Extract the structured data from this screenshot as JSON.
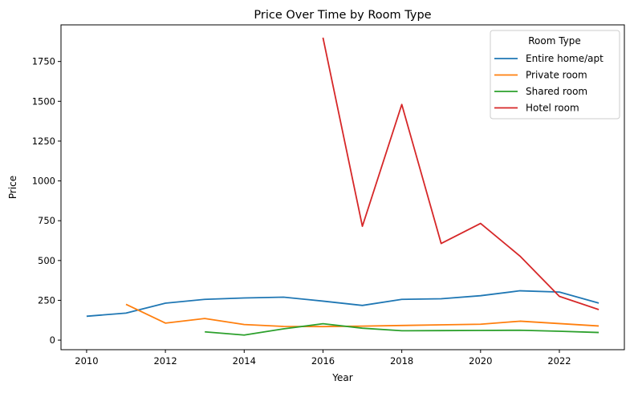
{
  "chart_data": {
    "type": "line",
    "title": "Price Over Time by Room Type",
    "xlabel": "Year",
    "ylabel": "Price",
    "xlim": [
      2009.35,
      2023.65
    ],
    "ylim": [
      -60,
      1980
    ],
    "x_ticks": [
      2010,
      2012,
      2014,
      2016,
      2018,
      2020,
      2022
    ],
    "y_ticks": [
      0,
      250,
      500,
      750,
      1000,
      1250,
      1500,
      1750
    ],
    "grid": false,
    "legend": {
      "title": "Room Type",
      "placement": "top-right"
    },
    "series": [
      {
        "name": "Entire home/apt",
        "color": "#1f77b4",
        "x": [
          2010,
          2011,
          2012,
          2013,
          2014,
          2015,
          2016,
          2017,
          2018,
          2019,
          2020,
          2021,
          2022,
          2023
        ],
        "y": [
          150,
          170,
          232,
          256,
          265,
          270,
          245,
          218,
          256,
          260,
          279,
          310,
          302,
          233
        ]
      },
      {
        "name": "Private room",
        "color": "#ff7f0e",
        "x": [
          2011,
          2012,
          2013,
          2014,
          2015,
          2016,
          2017,
          2018,
          2019,
          2020,
          2021,
          2022,
          2023
        ],
        "y": [
          225,
          107,
          136,
          98,
          86,
          85,
          88,
          92,
          96,
          100,
          119,
          104,
          89
        ]
      },
      {
        "name": "Shared room",
        "color": "#2ca02c",
        "x": [
          2013,
          2014,
          2015,
          2016,
          2017,
          2018,
          2019,
          2020,
          2021,
          2022,
          2023
        ],
        "y": [
          52,
          32,
          71,
          103,
          75,
          59,
          60,
          61,
          62,
          56,
          48
        ]
      },
      {
        "name": "Hotel room",
        "color": "#d62728",
        "x": [
          2016,
          2017,
          2018,
          2019,
          2020,
          2021,
          2022,
          2023
        ],
        "y": [
          1900,
          715,
          1480,
          607,
          733,
          528,
          275,
          192
        ]
      }
    ]
  }
}
